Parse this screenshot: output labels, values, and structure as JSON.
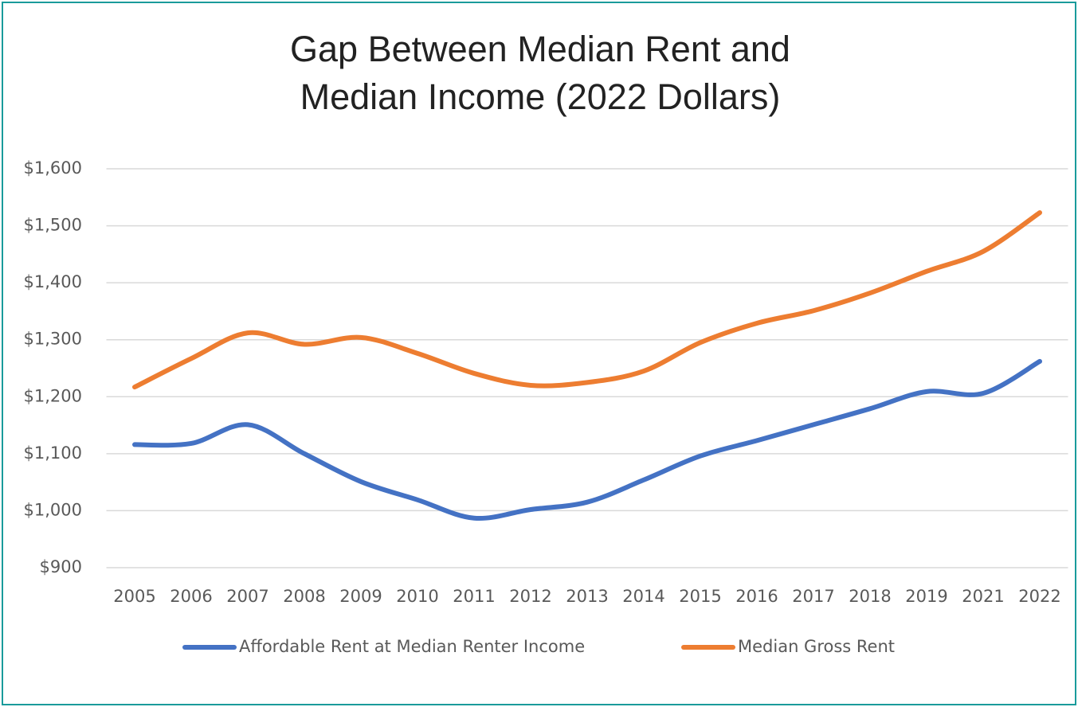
{
  "chart_data": {
    "type": "line",
    "title": "Gap Between Median Rent and Median Income (2022 Dollars)",
    "categories": [
      "2005",
      "2006",
      "2007",
      "2008",
      "2009",
      "2010",
      "2011",
      "2012",
      "2013",
      "2014",
      "2015",
      "2016",
      "2017",
      "2018",
      "2019",
      "2021",
      "2022"
    ],
    "series": [
      {
        "name": "Affordable Rent at Median Renter Income",
        "color": "#4472c4",
        "values": [
          1116,
          1118,
          1151,
          1100,
          1051,
          1019,
          987,
          1002,
          1015,
          1054,
          1096,
          1123,
          1151,
          1179,
          1209,
          1206,
          1262
        ]
      },
      {
        "name": "Median Gross Rent",
        "color": "#ed7d31",
        "values": [
          1217,
          1267,
          1312,
          1292,
          1304,
          1276,
          1241,
          1220,
          1225,
          1245,
          1295,
          1329,
          1351,
          1382,
          1420,
          1455,
          1523
        ]
      }
    ],
    "ylim": [
      900,
      1600
    ],
    "yticks": [
      {
        "value": 900,
        "label": "$900"
      },
      {
        "value": 1000,
        "label": "$1,000"
      },
      {
        "value": 1100,
        "label": "$1,100"
      },
      {
        "value": 1200,
        "label": "$1,200"
      },
      {
        "value": 1300,
        "label": "$1,300"
      },
      {
        "value": 1400,
        "label": "$1,400"
      },
      {
        "value": 1500,
        "label": "$1,500"
      },
      {
        "value": 1600,
        "label": "$1,600"
      }
    ],
    "grid": true,
    "legend": "bottom"
  }
}
